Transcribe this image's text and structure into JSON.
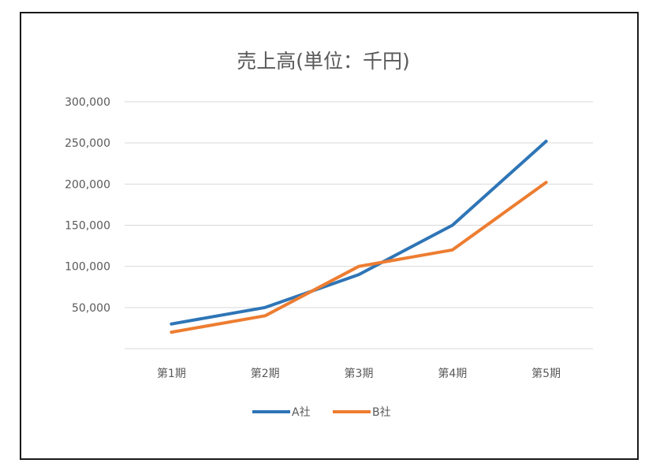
{
  "chart_data": {
    "type": "line",
    "title": "売上高(単位：千円)",
    "xlabel": "",
    "ylabel": "",
    "categories": [
      "第1期",
      "第2期",
      "第3期",
      "第4期",
      "第5期"
    ],
    "y_tick_labels": [
      "50,000",
      "100,000",
      "150,000",
      "200,000",
      "250,000",
      "300,000"
    ],
    "y_ticks": [
      50000,
      100000,
      150000,
      200000,
      250000,
      300000
    ],
    "ylim": [
      0,
      300000
    ],
    "grid": true,
    "legend_position": "bottom",
    "series": [
      {
        "name": "A社",
        "color": "#2E75B6",
        "values": [
          30000,
          50000,
          90000,
          150000,
          252000
        ]
      },
      {
        "name": "B社",
        "color": "#ED7D31",
        "values": [
          20000,
          40000,
          100000,
          120000,
          202000
        ]
      }
    ]
  }
}
